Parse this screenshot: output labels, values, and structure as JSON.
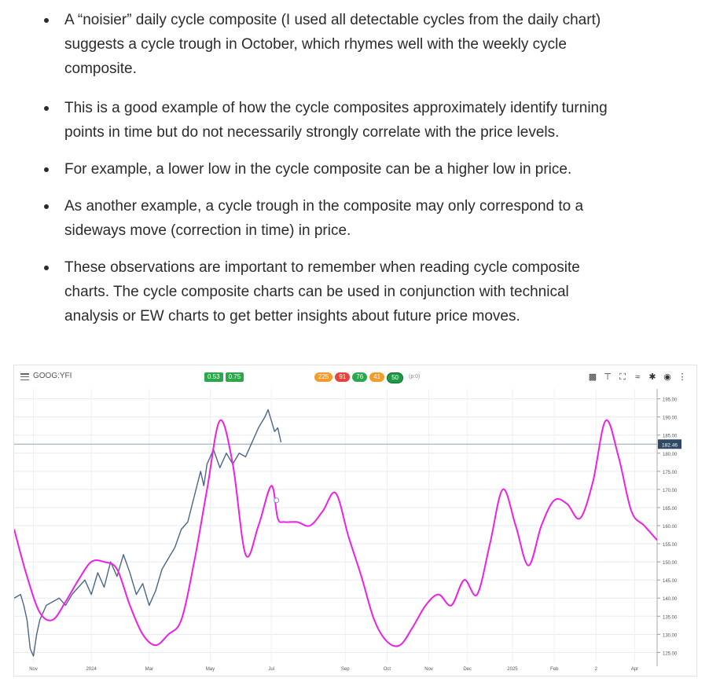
{
  "bullets": [
    {
      "lines": [
        "A “noisier” daily cycle composite (I used all detectable cycles from the daily chart)",
        "suggests a cycle trough in October, which rhymes well with the weekly cycle",
        "composite."
      ]
    },
    {
      "lines": [
        "This is a good example of how the cycle composites approximately identify turning",
        "points in time but do not necessarily strongly correlate with the price levels."
      ]
    },
    {
      "lines": [
        "For example, a lower low in the cycle composite can be a higher low in price."
      ]
    },
    {
      "lines": [
        "As another example, a cycle trough in the composite may only correspond to a",
        "sideways move (correction in time) in price."
      ]
    },
    {
      "lines": [
        "These observations are important to remember when reading cycle composite",
        "charts. The cycle composite charts can be used in conjunction with technical",
        "analysis or EW charts to get better insights about future price moves."
      ]
    }
  ],
  "toolbar": {
    "symbol": "GOOG:YFI",
    "left_pills": [
      "0.53",
      "0.75"
    ],
    "cycle_pills": [
      {
        "label": "225",
        "color": "#f59b2b"
      },
      {
        "label": "91",
        "color": "#e8423a"
      },
      {
        "label": "76",
        "color": "#2aa84a"
      },
      {
        "label": "41",
        "color": "#f59b2b"
      },
      {
        "label": "50",
        "color": "#1f9a44"
      }
    ],
    "p_label": "(p:0)",
    "tool_icons": [
      "save-icon",
      "pin-icon",
      "fullscreen-icon",
      "compare-icon",
      "settings-icon",
      "eye-icon",
      "more-icon"
    ]
  },
  "chart_data": {
    "type": "line",
    "title": "",
    "xlabel": "",
    "ylabel": "",
    "ylim": [
      124,
      196
    ],
    "y_ticks": [
      125,
      130,
      135,
      140,
      145,
      150,
      155,
      160,
      165,
      170,
      175,
      180,
      185,
      190,
      195
    ],
    "y_tick_labels": [
      "125.00",
      "130.00",
      "135.00",
      "140.00",
      "145.00",
      "150.00",
      "155.00",
      "160.00",
      "165.00",
      "170.00",
      "175.00",
      "180.00",
      "185.00",
      "190.00",
      "195.00"
    ],
    "x_ticks": [
      "Nov",
      "2024",
      "Mar",
      "May",
      "Jul",
      "Sep",
      "Oct",
      "Nov",
      "Dec",
      "2025",
      "Feb",
      "2",
      "Apr"
    ],
    "x_tick_positions": [
      0.03,
      0.12,
      0.21,
      0.305,
      0.4,
      0.515,
      0.58,
      0.645,
      0.705,
      0.775,
      0.84,
      0.905,
      0.965
    ],
    "last_price_label": "182.46",
    "last_price": 182.5,
    "series": [
      {
        "name": "",
        "color": "#4a6685",
        "x": [
          0.0,
          0.01,
          0.015,
          0.02,
          0.025,
          0.03,
          0.035,
          0.04,
          0.05,
          0.06,
          0.07,
          0.08,
          0.09,
          0.1,
          0.11,
          0.12,
          0.13,
          0.14,
          0.15,
          0.16,
          0.17,
          0.18,
          0.19,
          0.2,
          0.21,
          0.22,
          0.23,
          0.24,
          0.25,
          0.26,
          0.27,
          0.28,
          0.29,
          0.295,
          0.3,
          0.31,
          0.32,
          0.33,
          0.34,
          0.35,
          0.36,
          0.37,
          0.38,
          0.39,
          0.395,
          0.4,
          0.405,
          0.41,
          0.415
        ],
        "values": [
          140,
          141,
          138,
          134,
          126,
          124,
          130,
          134,
          138,
          139,
          140,
          138,
          141,
          143,
          145,
          141,
          147,
          143,
          150,
          146,
          152,
          147,
          141,
          144,
          138,
          142,
          148,
          151,
          154,
          159,
          161,
          168,
          175,
          171,
          177,
          181,
          176,
          180,
          177,
          180,
          179,
          183,
          187,
          190,
          192,
          189,
          186,
          187,
          183
        ]
      },
      {
        "name": "",
        "color": "#ee1fe6",
        "x": [
          0.0,
          0.02,
          0.04,
          0.06,
          0.08,
          0.1,
          0.12,
          0.14,
          0.16,
          0.18,
          0.2,
          0.22,
          0.24,
          0.26,
          0.28,
          0.3,
          0.32,
          0.34,
          0.36,
          0.38,
          0.4,
          0.41,
          0.42,
          0.44,
          0.46,
          0.48,
          0.5,
          0.52,
          0.54,
          0.56,
          0.58,
          0.6,
          0.62,
          0.64,
          0.66,
          0.68,
          0.7,
          0.72,
          0.74,
          0.76,
          0.78,
          0.8,
          0.82,
          0.84,
          0.86,
          0.88,
          0.9,
          0.92,
          0.94,
          0.96,
          0.98,
          1.0
        ],
        "values": [
          159,
          146,
          136,
          134,
          139,
          145,
          150,
          150,
          148,
          138,
          130,
          127,
          130,
          134,
          150,
          170,
          189,
          177,
          152,
          160,
          171,
          162,
          161,
          161,
          160,
          164,
          169,
          157,
          146,
          134,
          128,
          127,
          132,
          138,
          141,
          138,
          145,
          141,
          155,
          170,
          160,
          149,
          160,
          167,
          166,
          162,
          172,
          189,
          179,
          164,
          160,
          156
        ]
      }
    ],
    "marker": {
      "series_index": 1,
      "x": 0.408,
      "value": 167
    }
  }
}
